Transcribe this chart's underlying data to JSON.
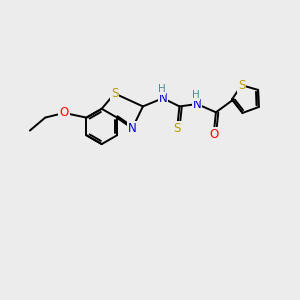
{
  "bg_color": "#ececec",
  "bond_color": "#000000",
  "atom_colors": {
    "S": "#b8a000",
    "N": "#0000cc",
    "O": "#ff0000",
    "H": "#4a9090",
    "C": "#000000"
  },
  "lw": 1.4,
  "figsize": [
    3.0,
    3.0
  ],
  "dpi": 100,
  "xlim": [
    -1.0,
    11.5
  ],
  "ylim": [
    -1.5,
    8.5
  ]
}
